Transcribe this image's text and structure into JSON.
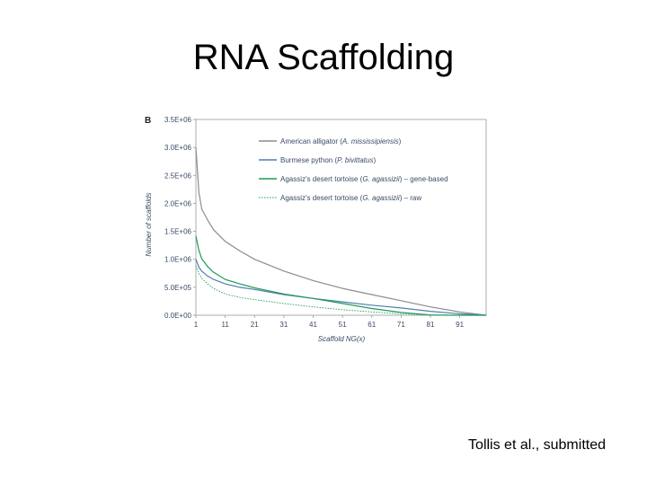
{
  "slide": {
    "title": "RNA Scaffolding",
    "citation": "Tollis et al., submitted"
  },
  "chart_data": {
    "type": "line",
    "panel_label": "B",
    "xlabel": "Scaffold NG(x)",
    "ylabel": "Number of scaffolds",
    "xlim": [
      1,
      100
    ],
    "ylim": [
      0,
      3500000
    ],
    "x_ticks": [
      1,
      11,
      21,
      31,
      41,
      51,
      61,
      71,
      81,
      91
    ],
    "y_ticks": [
      0,
      500000,
      1000000,
      1500000,
      2000000,
      2500000,
      3000000,
      3500000
    ],
    "y_tick_labels": [
      "0.0E+00",
      "5.0E+05",
      "1.0E+06",
      "1.5E+06",
      "2.0E+06",
      "2.5E+06",
      "3.0E+06",
      "3.5E+06"
    ],
    "grid": false,
    "legend_position": "top-right",
    "series": [
      {
        "name": "American alligator",
        "name_italic": "A. mississipiensis",
        "color": "#8c8c8c",
        "dash": "solid",
        "x": [
          1,
          2,
          3,
          5,
          7,
          11,
          16,
          21,
          31,
          41,
          51,
          61,
          71,
          81,
          91,
          100
        ],
        "y": [
          3000000,
          2200000,
          1900000,
          1700000,
          1530000,
          1320000,
          1150000,
          1000000,
          790000,
          620000,
          480000,
          370000,
          260000,
          150000,
          60000,
          0
        ]
      },
      {
        "name": "Burmese python",
        "name_italic": "P. bivittatus",
        "color": "#4f7fb0",
        "dash": "solid",
        "x": [
          1,
          2,
          3,
          5,
          7,
          11,
          16,
          21,
          31,
          41,
          51,
          61,
          71,
          81,
          91,
          100
        ],
        "y": [
          1000000,
          860000,
          790000,
          700000,
          640000,
          560000,
          500000,
          460000,
          370000,
          300000,
          240000,
          180000,
          130000,
          70000,
          25000,
          0
        ]
      },
      {
        "name": "Agassiz's desert tortoise",
        "name_italic": "G. agassizii",
        "suffix": "gene-based",
        "color": "#1f9a55",
        "dash": "solid",
        "x": [
          1,
          2,
          3,
          5,
          7,
          11,
          16,
          21,
          31,
          41,
          51,
          61,
          71,
          81,
          91,
          100
        ],
        "y": [
          1420000,
          1160000,
          1010000,
          870000,
          770000,
          640000,
          560000,
          490000,
          380000,
          300000,
          210000,
          120000,
          50000,
          5000,
          0,
          0
        ]
      },
      {
        "name": "Agassiz's desert tortoise",
        "name_italic": "G. agassizii",
        "suffix": "raw",
        "color": "#1f9a55",
        "dash": "dotted",
        "x": [
          1,
          2,
          3,
          5,
          7,
          11,
          16,
          21,
          31,
          41,
          51,
          61,
          71,
          81,
          91,
          100
        ],
        "y": [
          880000,
          750000,
          660000,
          560000,
          480000,
          380000,
          320000,
          280000,
          210000,
          150000,
          100000,
          60000,
          25000,
          5000,
          0,
          0
        ]
      }
    ]
  }
}
